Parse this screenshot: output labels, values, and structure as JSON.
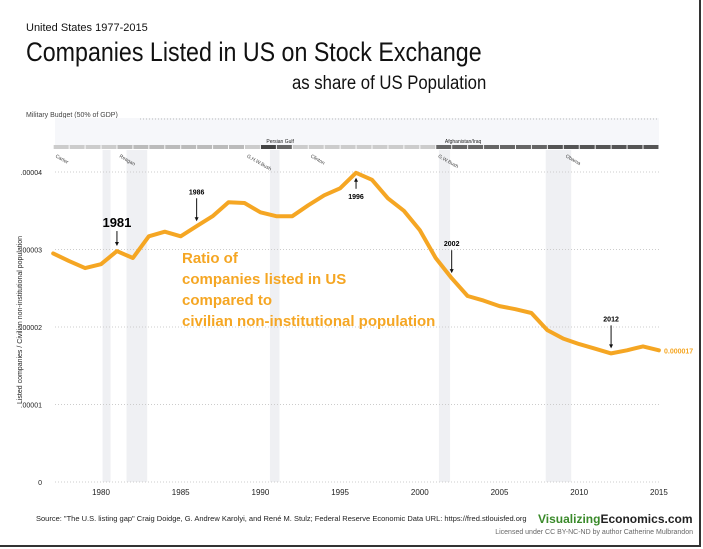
{
  "header": {
    "subtitle": "United States 1977-2015",
    "title": "Companies Listed in US on Stock Exchange",
    "title2": "as share of US Population"
  },
  "military": {
    "label": "Military Budget (50% of GDP)",
    "wars": [
      {
        "label": "Persian Gulf",
        "start": 1990.5,
        "end": 1991.5
      },
      {
        "label": "Afghanistan/Iraq",
        "start": 2001.7,
        "end": 2015
      }
    ]
  },
  "presidents": [
    {
      "name": "Carter",
      "year": 1977
    },
    {
      "name": "Reagan",
      "year": 1981
    },
    {
      "name": "G.H.W.Bush",
      "year": 1989
    },
    {
      "name": "Clinton",
      "year": 1993
    },
    {
      "name": "G.W.Bush",
      "year": 2001
    },
    {
      "name": "Obama",
      "year": 2009
    }
  ],
  "recessions": [
    [
      1980.1,
      1980.6
    ],
    [
      1981.6,
      1982.9
    ],
    [
      1990.6,
      1991.2
    ],
    [
      2001.2,
      2001.9
    ],
    [
      2007.9,
      2009.5
    ]
  ],
  "chart_data": {
    "type": "line",
    "title": "",
    "ylabel": "Listed companies / Civilian non-institutional population",
    "xlabel": "",
    "xlim": [
      1977,
      2015
    ],
    "ylim": [
      0,
      4e-05
    ],
    "xticks": [
      1980,
      1985,
      1990,
      1995,
      2000,
      2005,
      2010,
      2015
    ],
    "yticks": [
      {
        "v": 0,
        "l": "0"
      },
      {
        "v": 1e-05,
        "l": ".00001"
      },
      {
        "v": 2e-05,
        "l": ".00002"
      },
      {
        "v": 3e-05,
        "l": ".00003"
      },
      {
        "v": 4e-05,
        "l": ".00004"
      }
    ],
    "color": "#f5a623",
    "x": [
      1977,
      1978,
      1979,
      1980,
      1981,
      1982,
      1983,
      1984,
      1985,
      1986,
      1987,
      1988,
      1989,
      1990,
      1991,
      1992,
      1993,
      1994,
      1995,
      1996,
      1997,
      1998,
      1999,
      2000,
      2001,
      2002,
      2003,
      2004,
      2005,
      2006,
      2007,
      2008,
      2009,
      2010,
      2011,
      2012,
      2013,
      2014,
      2015
    ],
    "y": [
      2.95e-05,
      2.85e-05,
      2.76e-05,
      2.81e-05,
      2.98e-05,
      2.89e-05,
      3.17e-05,
      3.23e-05,
      3.17e-05,
      3.3e-05,
      3.43e-05,
      3.61e-05,
      3.6e-05,
      3.48e-05,
      3.43e-05,
      3.43e-05,
      3.57e-05,
      3.7e-05,
      3.79e-05,
      3.99e-05,
      3.9e-05,
      3.66e-05,
      3.5e-05,
      3.25e-05,
      2.89e-05,
      2.63e-05,
      2.4e-05,
      2.34e-05,
      2.27e-05,
      2.23e-05,
      2.18e-05,
      1.96e-05,
      1.85e-05,
      1.78e-05,
      1.72e-05,
      1.66e-05,
      1.7e-05,
      1.75e-05,
      1.7e-05
    ],
    "end_label": "0.000017",
    "annotations": [
      {
        "year": 1981,
        "label": "1981",
        "big": true
      },
      {
        "year": 1986,
        "label": "1986"
      },
      {
        "year": 1996,
        "label": "1996",
        "below": true
      },
      {
        "year": 2002,
        "label": "2002"
      },
      {
        "year": 2012,
        "label": "2012"
      }
    ],
    "callout": [
      "Ratio of",
      "companies listed in US",
      "compared to",
      "civilian non-institutional population"
    ]
  },
  "footer": {
    "source": "Source: \"The U.S. listing gap\" Craig Doidge, G. Andrew Karolyi, and René M. Stulz;  Federal Reserve Economic Data URL: https://fred.stlouisfed.org",
    "brand_a": "Visualizing",
    "brand_b": "Economics.com",
    "license": "Licensed under CC BY-NC-ND by author Catherine Mulbrandon"
  }
}
